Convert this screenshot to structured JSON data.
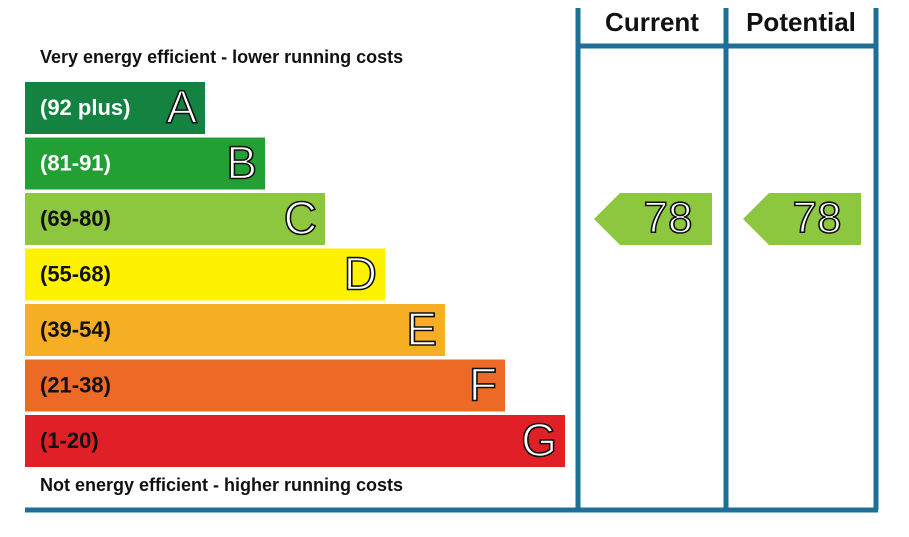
{
  "header": {
    "current": "Current",
    "potential": "Potential"
  },
  "top_note": "Very energy efficient - lower running costs",
  "bottom_note": "Not energy efficient - higher running costs",
  "bands": [
    {
      "range": "(92 plus)",
      "letter": "A",
      "color": "#148241"
    },
    {
      "range": "(81-91)",
      "letter": "B",
      "color": "#22a034"
    },
    {
      "range": "(69-80)",
      "letter": "C",
      "color": "#8dc63f"
    },
    {
      "range": "(55-68)",
      "letter": "D",
      "color": "#fff200"
    },
    {
      "range": "(39-54)",
      "letter": "E",
      "color": "#f6ae24"
    },
    {
      "range": "(21-38)",
      "letter": "F",
      "color": "#ec6a25"
    },
    {
      "range": "(1-20)",
      "letter": "G",
      "color": "#e11f26"
    }
  ],
  "current": 78,
  "potential": 78
}
